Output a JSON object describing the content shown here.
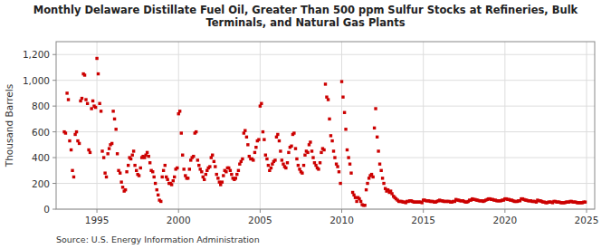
{
  "chart_data": {
    "type": "scatter",
    "title": "Monthly Delaware Distillate Fuel Oil, Greater Than 500 ppm Sulfur Stocks at Refineries, Bulk\nTerminals, and Natural Gas Plants",
    "ylabel": "Thousand Barrels",
    "source": "Source: U.S. Energy Information Administration",
    "color": "#cc0000",
    "marker": "square",
    "grid": true,
    "xlim": [
      1992.5,
      2025.5
    ],
    "xticks": [
      1995,
      2000,
      2005,
      2010,
      2015,
      2020,
      2025
    ],
    "ylim": [
      0,
      1300
    ],
    "yticks": [
      0,
      200,
      400,
      600,
      800,
      {
        "value": 1000,
        "label": "1,000"
      },
      {
        "value": 1200,
        "label": "1,200"
      }
    ],
    "x": [
      1993.0,
      1993.08,
      1993.17,
      1993.25,
      1993.33,
      1993.42,
      1993.5,
      1993.58,
      1993.67,
      1993.75,
      1993.83,
      1993.92,
      1994.0,
      1994.08,
      1994.17,
      1994.25,
      1994.33,
      1994.42,
      1994.5,
      1994.58,
      1994.67,
      1994.75,
      1994.83,
      1994.92,
      1995.0,
      1995.08,
      1995.17,
      1995.25,
      1995.33,
      1995.42,
      1995.5,
      1995.58,
      1995.67,
      1995.75,
      1995.83,
      1995.92,
      1996.0,
      1996.08,
      1996.17,
      1996.25,
      1996.33,
      1996.42,
      1996.5,
      1996.58,
      1996.67,
      1996.75,
      1996.83,
      1996.92,
      1997.0,
      1997.08,
      1997.17,
      1997.25,
      1997.33,
      1997.42,
      1997.5,
      1997.58,
      1997.67,
      1997.75,
      1997.83,
      1997.92,
      1998.0,
      1998.08,
      1998.17,
      1998.25,
      1998.33,
      1998.42,
      1998.5,
      1998.58,
      1998.67,
      1998.75,
      1998.83,
      1998.92,
      1999.0,
      1999.08,
      1999.17,
      1999.25,
      1999.33,
      1999.42,
      1999.5,
      1999.58,
      1999.67,
      1999.75,
      1999.83,
      1999.92,
      2000.0,
      2000.08,
      2000.17,
      2000.25,
      2000.33,
      2000.42,
      2000.5,
      2000.58,
      2000.67,
      2000.75,
      2000.83,
      2000.92,
      2001.0,
      2001.08,
      2001.17,
      2001.25,
      2001.33,
      2001.42,
      2001.5,
      2001.58,
      2001.67,
      2001.75,
      2001.83,
      2001.92,
      2002.0,
      2002.08,
      2002.17,
      2002.25,
      2002.33,
      2002.42,
      2002.5,
      2002.58,
      2002.67,
      2002.75,
      2002.83,
      2002.92,
      2003.0,
      2003.08,
      2003.17,
      2003.25,
      2003.33,
      2003.42,
      2003.5,
      2003.58,
      2003.67,
      2003.75,
      2003.83,
      2003.92,
      2004.0,
      2004.08,
      2004.17,
      2004.25,
      2004.33,
      2004.42,
      2004.5,
      2004.58,
      2004.67,
      2004.75,
      2004.83,
      2004.92,
      2005.0,
      2005.08,
      2005.17,
      2005.25,
      2005.33,
      2005.42,
      2005.5,
      2005.58,
      2005.67,
      2005.75,
      2005.83,
      2005.92,
      2006.0,
      2006.08,
      2006.17,
      2006.25,
      2006.33,
      2006.42,
      2006.5,
      2006.58,
      2006.67,
      2006.75,
      2006.83,
      2006.92,
      2007.0,
      2007.08,
      2007.17,
      2007.25,
      2007.33,
      2007.42,
      2007.5,
      2007.58,
      2007.67,
      2007.75,
      2007.83,
      2007.92,
      2008.0,
      2008.08,
      2008.17,
      2008.25,
      2008.33,
      2008.42,
      2008.5,
      2008.58,
      2008.67,
      2008.75,
      2008.83,
      2008.92,
      2009.0,
      2009.08,
      2009.17,
      2009.25,
      2009.33,
      2009.42,
      2009.5,
      2009.58,
      2009.67,
      2009.75,
      2009.83,
      2009.92,
      2010.0,
      2010.08,
      2010.17,
      2010.25,
      2010.33,
      2010.42,
      2010.5,
      2010.58,
      2010.67,
      2010.75,
      2010.83,
      2010.92,
      2011.0,
      2011.08,
      2011.17,
      2011.25,
      2011.33,
      2011.42,
      2011.5,
      2011.58,
      2011.67,
      2011.75,
      2011.83,
      2011.92,
      2012.0,
      2012.08,
      2012.17,
      2012.25,
      2012.33,
      2012.42,
      2012.5,
      2012.58,
      2012.67,
      2012.75,
      2012.83,
      2012.92,
      2013.0,
      2013.08,
      2013.17,
      2013.25,
      2013.33,
      2013.42,
      2013.5,
      2013.58,
      2013.67,
      2013.75,
      2013.83,
      2013.92,
      2014.0,
      2014.08,
      2014.17,
      2014.25,
      2014.33,
      2014.42,
      2014.5,
      2014.58,
      2014.67,
      2014.75,
      2014.83,
      2014.92,
      2015.0,
      2015.08,
      2015.17,
      2015.25,
      2015.33,
      2015.42,
      2015.5,
      2015.58,
      2015.67,
      2015.75,
      2015.83,
      2015.92,
      2016.0,
      2016.08,
      2016.17,
      2016.25,
      2016.33,
      2016.42,
      2016.5,
      2016.58,
      2016.67,
      2016.75,
      2016.83,
      2016.92,
      2017.0,
      2017.08,
      2017.17,
      2017.25,
      2017.33,
      2017.42,
      2017.5,
      2017.58,
      2017.67,
      2017.75,
      2017.83,
      2017.92,
      2018.0,
      2018.08,
      2018.17,
      2018.25,
      2018.33,
      2018.42,
      2018.5,
      2018.58,
      2018.67,
      2018.75,
      2018.83,
      2018.92,
      2019.0,
      2019.08,
      2019.17,
      2019.25,
      2019.33,
      2019.42,
      2019.5,
      2019.58,
      2019.67,
      2019.75,
      2019.83,
      2019.92,
      2020.0,
      2020.08,
      2020.17,
      2020.25,
      2020.33,
      2020.42,
      2020.5,
      2020.58,
      2020.67,
      2020.75,
      2020.83,
      2020.92,
      2021.0,
      2021.08,
      2021.17,
      2021.25,
      2021.33,
      2021.42,
      2021.5,
      2021.58,
      2021.67,
      2021.75,
      2021.83,
      2021.92,
      2022.0,
      2022.08,
      2022.17,
      2022.25,
      2022.33,
      2022.42,
      2022.5,
      2022.58,
      2022.67,
      2022.75,
      2022.83,
      2022.92,
      2023.0,
      2023.08,
      2023.17,
      2023.25,
      2023.33,
      2023.42,
      2023.5,
      2023.58,
      2023.67,
      2023.75,
      2023.83,
      2023.92,
      2024.0,
      2024.08,
      2024.17,
      2024.25,
      2024.33,
      2024.42,
      2024.5,
      2024.58,
      2024.67,
      2024.75,
      2024.83,
      2024.92
    ],
    "values": [
      600,
      590,
      900,
      850,
      530,
      460,
      300,
      250,
      580,
      600,
      530,
      510,
      840,
      860,
      1050,
      1040,
      850,
      820,
      460,
      440,
      780,
      840,
      800,
      790,
      1170,
      1050,
      820,
      760,
      450,
      400,
      280,
      250,
      430,
      470,
      500,
      510,
      760,
      700,
      620,
      430,
      300,
      280,
      210,
      170,
      140,
      150,
      290,
      340,
      400,
      390,
      420,
      450,
      340,
      300,
      270,
      260,
      320,
      400,
      410,
      400,
      420,
      440,
      410,
      360,
      300,
      290,
      250,
      200,
      150,
      110,
      70,
      60,
      250,
      300,
      340,
      250,
      230,
      200,
      200,
      190,
      220,
      250,
      310,
      320,
      740,
      760,
      590,
      420,
      310,
      260,
      240,
      240,
      310,
      380,
      400,
      410,
      590,
      600,
      380,
      340,
      310,
      290,
      250,
      230,
      270,
      300,
      320,
      330,
      400,
      420,
      370,
      330,
      270,
      240,
      210,
      190,
      210,
      260,
      300,
      290,
      320,
      320,
      300,
      270,
      240,
      230,
      240,
      270,
      300,
      350,
      370,
      390,
      590,
      610,
      560,
      500,
      410,
      390,
      390,
      380,
      440,
      480,
      530,
      540,
      800,
      820,
      600,
      540,
      420,
      390,
      340,
      300,
      320,
      350,
      370,
      380,
      560,
      580,
      530,
      450,
      380,
      350,
      330,
      320,
      360,
      440,
      480,
      490,
      580,
      590,
      470,
      390,
      340,
      310,
      290,
      280,
      340,
      420,
      450,
      440,
      500,
      520,
      450,
      400,
      360,
      340,
      320,
      310,
      360,
      440,
      470,
      460,
      970,
      870,
      850,
      700,
      570,
      530,
      450,
      400,
      350,
      330,
      290,
      200,
      990,
      870,
      750,
      620,
      460,
      400,
      350,
      280,
      130,
      110,
      90,
      60,
      90,
      80,
      60,
      35,
      30,
      30,
      150,
      200,
      240,
      260,
      270,
      250,
      630,
      780,
      560,
      450,
      350,
      300,
      240,
      200,
      160,
      140,
      150,
      130,
      140,
      120,
      100,
      90,
      80,
      70,
      60,
      60,
      60,
      55,
      55,
      50,
      60,
      60,
      65,
      65,
      60,
      55,
      55,
      55,
      55,
      55,
      55,
      50,
      70,
      70,
      65,
      65,
      65,
      60,
      60,
      60,
      55,
      55,
      60,
      65,
      70,
      65,
      65,
      60,
      60,
      60,
      60,
      60,
      55,
      55,
      60,
      60,
      75,
      70,
      70,
      65,
      65,
      65,
      60,
      55,
      55,
      60,
      70,
      70,
      80,
      75,
      75,
      70,
      70,
      65,
      65,
      65,
      60,
      65,
      70,
      75,
      80,
      80,
      75,
      75,
      70,
      70,
      65,
      65,
      65,
      65,
      70,
      70,
      80,
      80,
      75,
      75,
      70,
      70,
      65,
      60,
      60,
      60,
      65,
      65,
      80,
      80,
      75,
      70,
      70,
      65,
      65,
      65,
      60,
      60,
      60,
      55,
      70,
      65,
      65,
      60,
      55,
      55,
      50,
      50,
      55,
      55,
      55,
      50,
      60,
      60,
      55,
      55,
      55,
      50,
      50,
      50,
      50,
      55,
      55,
      55,
      60,
      60,
      55,
      55,
      55,
      50,
      50,
      50,
      50,
      50,
      55,
      55
    ]
  }
}
